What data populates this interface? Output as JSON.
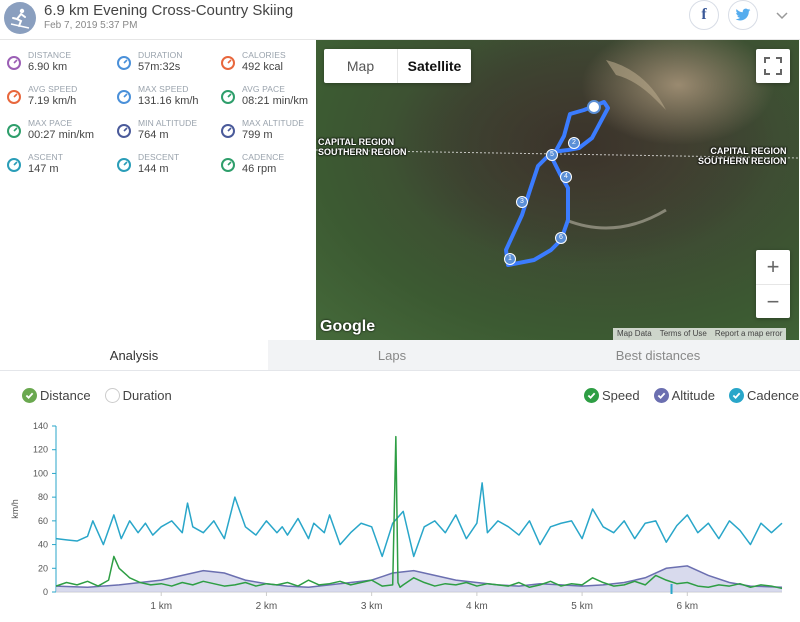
{
  "header": {
    "title": "6.9 km Evening Cross-Country Skiing",
    "subtitle": "Feb 7, 2019 5:37 PM",
    "share_facebook": "f"
  },
  "stats": [
    {
      "label": "DISTANCE",
      "value": "6.90 km",
      "icon": "distance-icon",
      "color": "#9b5fb5"
    },
    {
      "label": "DURATION",
      "value": "57m:32s",
      "icon": "stopwatch-icon",
      "color": "#4a90d9"
    },
    {
      "label": "CALORIES",
      "value": "492 kcal",
      "icon": "flame-icon",
      "color": "#e8673c"
    },
    {
      "label": "AVG SPEED",
      "value": "7.19 km/h",
      "icon": "speedometer-icon",
      "color": "#e8673c"
    },
    {
      "label": "MAX SPEED",
      "value": "131.16 km/h",
      "icon": "stopwatch-icon",
      "color": "#4a90d9"
    },
    {
      "label": "AVG PACE",
      "value": "08:21 min/km",
      "icon": "gauge-icon",
      "color": "#2e9e6b"
    },
    {
      "label": "MAX PACE",
      "value": "00:27 min/km",
      "icon": "gauge-icon",
      "color": "#2e9e6b"
    },
    {
      "label": "MIN ALTITUDE",
      "value": "764 m",
      "icon": "mountain-icon",
      "color": "#4a5a9a"
    },
    {
      "label": "MAX ALTITUDE",
      "value": "799 m",
      "icon": "mountain-icon",
      "color": "#4a5a9a"
    },
    {
      "label": "ASCENT",
      "value": "147 m",
      "icon": "ascent-icon",
      "color": "#2a9db8"
    },
    {
      "label": "DESCENT",
      "value": "144 m",
      "icon": "descent-icon",
      "color": "#2a9db8"
    },
    {
      "label": "CADENCE",
      "value": "46 rpm",
      "icon": "cadence-icon",
      "color": "#2e9e6b"
    }
  ],
  "map": {
    "type_buttons": [
      "Map",
      "Satellite"
    ],
    "active_type": "Satellite",
    "region_left": [
      "CAPITAL REGION",
      "SOUTHERN REGION"
    ],
    "region_right": [
      "CAPITAL REGION",
      "SOUTHERN REGION"
    ],
    "zoom_in": "+",
    "zoom_out": "−",
    "google_logo": "Google",
    "footer": [
      "Map Data",
      "Terms of Use",
      "Report a map error"
    ],
    "markers": [
      "1",
      "2",
      "3",
      "4",
      "5",
      "6"
    ]
  },
  "tabs": [
    "Analysis",
    "Laps",
    "Best distances"
  ],
  "chart_options": {
    "x_axis": [
      {
        "label": "Distance",
        "checked": true,
        "color": "#6aa84f"
      },
      {
        "label": "Duration",
        "checked": false,
        "color": "#cccccc"
      }
    ],
    "series": [
      {
        "label": "Speed",
        "checked": true,
        "color": "#2e9e44"
      },
      {
        "label": "Altitude",
        "checked": true,
        "color": "#6b6fb0"
      },
      {
        "label": "Cadence",
        "checked": true,
        "color": "#29a6c9"
      }
    ]
  },
  "chart_data": {
    "type": "line",
    "ylabel": "km/h",
    "ylim": [
      0,
      140
    ],
    "yticks": [
      0,
      20,
      40,
      60,
      80,
      100,
      120,
      140
    ],
    "xlim": [
      0,
      6.9
    ],
    "xticks": [
      "1 km",
      "2 km",
      "3 km",
      "4 km",
      "5 km",
      "6 km"
    ],
    "xtick_values": [
      1,
      2,
      3,
      4,
      5,
      6
    ],
    "series": [
      {
        "name": "Cadence",
        "color": "#29a6c9",
        "x": [
          0.0,
          0.1,
          0.2,
          0.3,
          0.35,
          0.45,
          0.55,
          0.62,
          0.7,
          0.78,
          0.85,
          0.92,
          1.0,
          1.1,
          1.2,
          1.25,
          1.3,
          1.4,
          1.5,
          1.6,
          1.7,
          1.8,
          1.9,
          2.0,
          2.1,
          2.15,
          2.2,
          2.3,
          2.4,
          2.45,
          2.55,
          2.6,
          2.7,
          2.8,
          2.9,
          3.0,
          3.1,
          3.2,
          3.3,
          3.4,
          3.5,
          3.6,
          3.7,
          3.8,
          3.9,
          4.0,
          4.05,
          4.1,
          4.2,
          4.3,
          4.4,
          4.5,
          4.6,
          4.7,
          4.8,
          4.9,
          5.0,
          5.1,
          5.2,
          5.3,
          5.4,
          5.5,
          5.6,
          5.7,
          5.8,
          5.9,
          6.0,
          6.1,
          6.2,
          6.3,
          6.4,
          6.5,
          6.6,
          6.7,
          6.8,
          6.9
        ],
        "values": [
          45,
          44,
          43,
          47,
          60,
          40,
          65,
          45,
          60,
          50,
          58,
          48,
          55,
          60,
          50,
          75,
          55,
          50,
          60,
          45,
          80,
          55,
          48,
          60,
          50,
          55,
          48,
          62,
          45,
          58,
          50,
          65,
          40,
          50,
          58,
          55,
          30,
          58,
          68,
          30,
          55,
          60,
          50,
          65,
          45,
          58,
          92,
          50,
          60,
          55,
          48,
          60,
          40,
          55,
          58,
          60,
          45,
          70,
          55,
          50,
          60,
          45,
          58,
          60,
          42,
          56,
          65,
          50,
          58,
          45,
          60,
          52,
          40,
          58,
          50,
          58
        ]
      },
      {
        "name": "Speed",
        "color": "#2e9e44",
        "x": [
          0.0,
          0.1,
          0.2,
          0.3,
          0.4,
          0.5,
          0.55,
          0.6,
          0.7,
          0.8,
          0.9,
          1.0,
          1.1,
          1.2,
          1.3,
          1.4,
          1.5,
          1.6,
          1.7,
          1.8,
          1.9,
          2.0,
          2.1,
          2.2,
          2.3,
          2.4,
          2.5,
          2.6,
          2.7,
          2.8,
          2.9,
          3.0,
          3.1,
          3.2,
          3.23,
          3.25,
          3.27,
          3.3,
          3.4,
          3.5,
          3.6,
          3.7,
          3.8,
          3.9,
          4.0,
          4.1,
          4.2,
          4.3,
          4.4,
          4.5,
          4.6,
          4.7,
          4.8,
          4.9,
          5.0,
          5.1,
          5.2,
          5.3,
          5.4,
          5.5,
          5.6,
          5.7,
          5.8,
          5.9,
          6.0,
          6.1,
          6.2,
          6.3,
          6.4,
          6.5,
          6.6,
          6.7,
          6.8,
          6.9
        ],
        "values": [
          5,
          8,
          6,
          9,
          5,
          10,
          30,
          20,
          12,
          8,
          6,
          7,
          5,
          8,
          6,
          9,
          7,
          5,
          6,
          8,
          5,
          7,
          6,
          8,
          5,
          10,
          6,
          7,
          9,
          6,
          8,
          10,
          5,
          6,
          131,
          8,
          4,
          6,
          12,
          8,
          5,
          7,
          6,
          8,
          5,
          7,
          6,
          5,
          8,
          4,
          6,
          9,
          5,
          7,
          6,
          12,
          8,
          5,
          6,
          9,
          6,
          14,
          10,
          7,
          8,
          5,
          4,
          6,
          5,
          7,
          4,
          6,
          5,
          3
        ]
      },
      {
        "name": "Altitude",
        "color": "#6b6fb0",
        "x": [
          0.0,
          0.3,
          0.6,
          0.8,
          1.0,
          1.2,
          1.4,
          1.6,
          1.8,
          2.0,
          2.2,
          2.4,
          2.6,
          2.8,
          3.0,
          3.2,
          3.4,
          3.6,
          3.8,
          4.0,
          4.2,
          4.4,
          4.6,
          4.8,
          5.0,
          5.2,
          5.4,
          5.6,
          5.8,
          6.0,
          6.2,
          6.4,
          6.6,
          6.9
        ],
        "values": [
          5,
          4,
          6,
          8,
          10,
          14,
          18,
          16,
          10,
          7,
          5,
          4,
          6,
          8,
          10,
          16,
          18,
          14,
          10,
          8,
          6,
          5,
          7,
          6,
          5,
          6,
          8,
          12,
          20,
          22,
          14,
          8,
          5,
          4
        ]
      }
    ]
  }
}
